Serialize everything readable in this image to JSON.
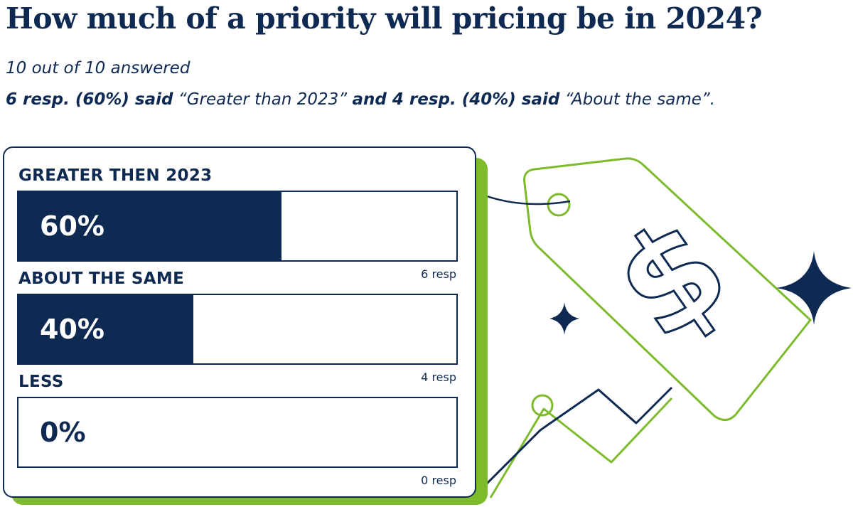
{
  "header": {
    "title": "How much of a priority will pricing be in 2024?",
    "answered": "10 out of 10 answered",
    "summary": {
      "part1": "6 resp. (60%) said",
      "quote1": " “Greater than 2023” ",
      "part2": "and 4 resp. (40%) said",
      "quote2": " “About the same”."
    }
  },
  "chart_data": {
    "type": "bar",
    "orientation": "horizontal",
    "categories": [
      "GREATER THEN 2023",
      "ABOUT THE SAME",
      "LESS"
    ],
    "values": [
      60,
      40,
      0
    ],
    "value_labels": [
      "60%",
      "40%",
      "0%"
    ],
    "responses": [
      "6 resp",
      "4 resp",
      "0 resp"
    ],
    "xlim": [
      0,
      100
    ]
  },
  "colors": {
    "navy": "#0f2a52",
    "green": "#7dbb2c",
    "white": "#ffffff"
  },
  "icons": [
    "price-tag-icon",
    "dollar-sign-icon",
    "sparkle-star-icon",
    "trend-line-icon"
  ]
}
